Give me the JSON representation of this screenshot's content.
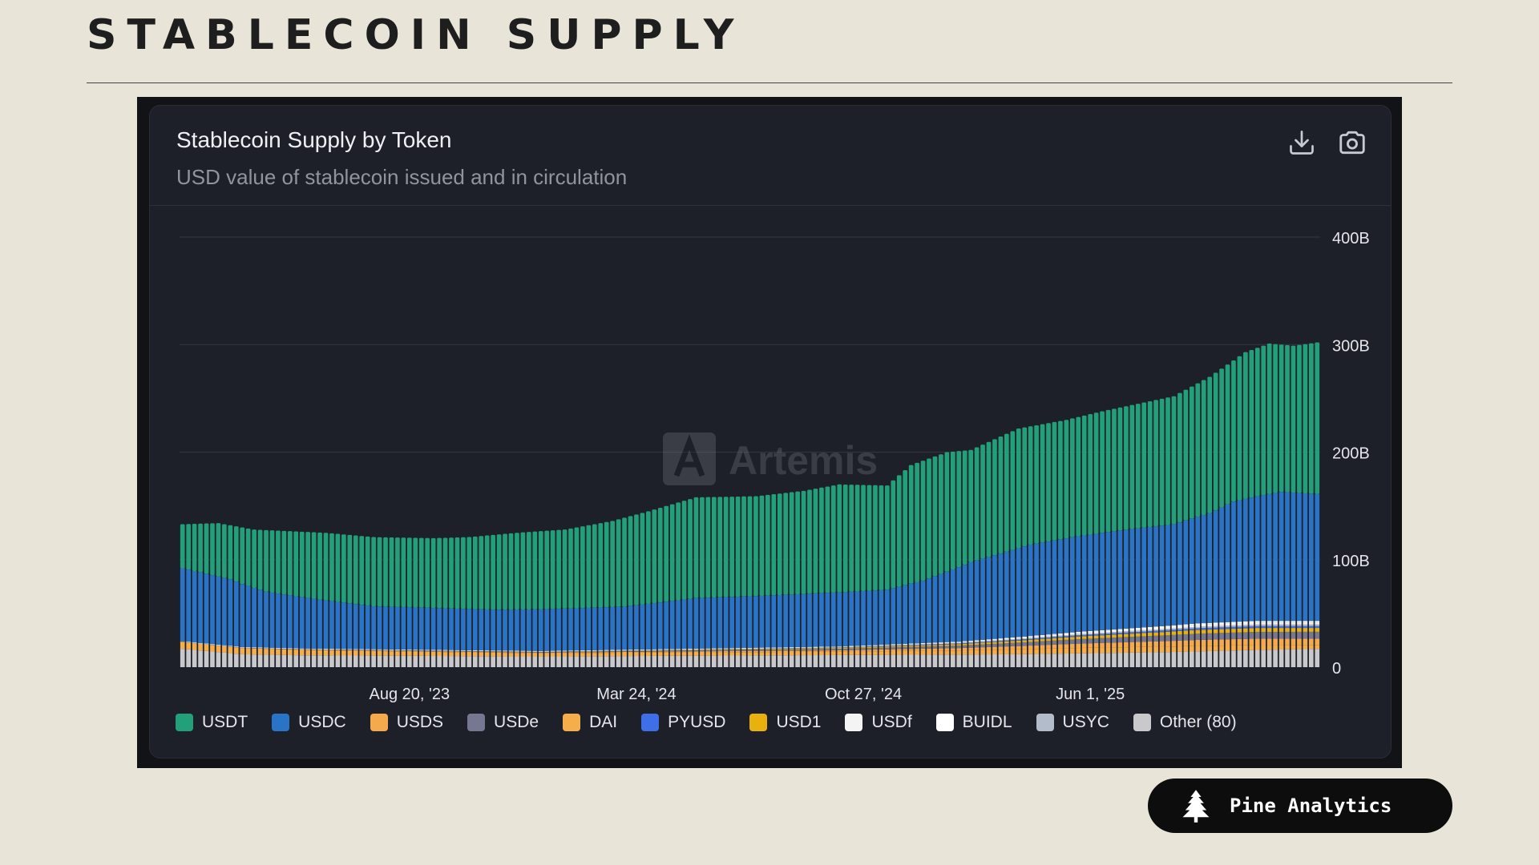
{
  "page": {
    "title": "STABLECOIN SUPPLY"
  },
  "card": {
    "title": "Stablecoin Supply by Token",
    "subtitle": "USD value of stablecoin issued and in circulation",
    "actions": [
      {
        "icon": "download-icon"
      },
      {
        "icon": "camera-icon"
      }
    ],
    "watermark": "Artemis"
  },
  "brand": {
    "name": "Pine Analytics",
    "icon": "pine-tree-icon"
  },
  "chart_data": {
    "type": "bar",
    "stacked": true,
    "title": "Stablecoin Supply by Token",
    "subtitle": "USD value of stablecoin issued and in circulation",
    "xlabel": "",
    "ylabel": "",
    "ylim": [
      0,
      400
    ],
    "y_unit": "B",
    "yticks": [
      "0",
      "100B",
      "200B",
      "300B",
      "400B"
    ],
    "xticks": [
      "Aug 20, '23",
      "Mar 24, '24",
      "Oct 27, '24",
      "Jun 1, '25"
    ],
    "xtick_index": [
      38,
      76,
      114,
      152
    ],
    "period": "weekly",
    "bar_count": 191,
    "grid": true,
    "legend_position": "bottom",
    "legend": [
      {
        "name": "USDT",
        "color": "#22a07a"
      },
      {
        "name": "USDC",
        "color": "#2a74c7"
      },
      {
        "name": "USDS",
        "color": "#f3a94c"
      },
      {
        "name": "USDe",
        "color": "#767790"
      },
      {
        "name": "DAI",
        "color": "#f6ae4a"
      },
      {
        "name": "PYUSD",
        "color": "#3f6fe8"
      },
      {
        "name": "USD1",
        "color": "#e9b10e"
      },
      {
        "name": "USDf",
        "color": "#f4f4f4"
      },
      {
        "name": "BUIDL",
        "color": "#ffffff"
      },
      {
        "name": "USYC",
        "color": "#b3bccb"
      },
      {
        "name": "Other (80)",
        "color": "#c9c9cc"
      }
    ],
    "totals_keyframes": [
      {
        "i": 0,
        "v": 133
      },
      {
        "i": 6,
        "v": 134
      },
      {
        "i": 12,
        "v": 128
      },
      {
        "i": 24,
        "v": 125
      },
      {
        "i": 32,
        "v": 121
      },
      {
        "i": 42,
        "v": 120
      },
      {
        "i": 48,
        "v": 121
      },
      {
        "i": 56,
        "v": 125
      },
      {
        "i": 64,
        "v": 128
      },
      {
        "i": 72,
        "v": 136
      },
      {
        "i": 78,
        "v": 145
      },
      {
        "i": 86,
        "v": 158
      },
      {
        "i": 96,
        "v": 159
      },
      {
        "i": 104,
        "v": 164
      },
      {
        "i": 110,
        "v": 170
      },
      {
        "i": 118,
        "v": 169
      },
      {
        "i": 122,
        "v": 188
      },
      {
        "i": 128,
        "v": 200
      },
      {
        "i": 132,
        "v": 202
      },
      {
        "i": 140,
        "v": 222
      },
      {
        "i": 148,
        "v": 230
      },
      {
        "i": 154,
        "v": 238
      },
      {
        "i": 160,
        "v": 245
      },
      {
        "i": 166,
        "v": 252
      },
      {
        "i": 172,
        "v": 270
      },
      {
        "i": 178,
        "v": 293
      },
      {
        "i": 182,
        "v": 301
      },
      {
        "i": 186,
        "v": 299
      },
      {
        "i": 190,
        "v": 302
      }
    ],
    "usdc_keyframes": [
      {
        "i": 0,
        "v": 68
      },
      {
        "i": 8,
        "v": 62
      },
      {
        "i": 14,
        "v": 52
      },
      {
        "i": 24,
        "v": 45
      },
      {
        "i": 32,
        "v": 40
      },
      {
        "i": 52,
        "v": 38
      },
      {
        "i": 74,
        "v": 40
      },
      {
        "i": 86,
        "v": 47
      },
      {
        "i": 96,
        "v": 48
      },
      {
        "i": 108,
        "v": 50
      },
      {
        "i": 118,
        "v": 51
      },
      {
        "i": 124,
        "v": 58
      },
      {
        "i": 132,
        "v": 73
      },
      {
        "i": 142,
        "v": 85
      },
      {
        "i": 150,
        "v": 89
      },
      {
        "i": 158,
        "v": 92
      },
      {
        "i": 166,
        "v": 94
      },
      {
        "i": 172,
        "v": 102
      },
      {
        "i": 176,
        "v": 112
      },
      {
        "i": 184,
        "v": 120
      },
      {
        "i": 190,
        "v": 118
      }
    ],
    "other_keyframes": [
      {
        "i": 0,
        "v": 17
      },
      {
        "i": 10,
        "v": 12
      },
      {
        "i": 20,
        "v": 11
      },
      {
        "i": 60,
        "v": 10
      },
      {
        "i": 100,
        "v": 11
      },
      {
        "i": 140,
        "v": 12
      },
      {
        "i": 165,
        "v": 14
      },
      {
        "i": 180,
        "v": 16
      },
      {
        "i": 190,
        "v": 17
      }
    ],
    "small_keyframes": [
      {
        "i": 0,
        "v": 7
      },
      {
        "i": 60,
        "v": 5
      },
      {
        "i": 110,
        "v": 8
      },
      {
        "i": 130,
        "v": 12
      },
      {
        "i": 150,
        "v": 20
      },
      {
        "i": 170,
        "v": 26
      },
      {
        "i": 180,
        "v": 27
      },
      {
        "i": 190,
        "v": 26
      }
    ]
  }
}
